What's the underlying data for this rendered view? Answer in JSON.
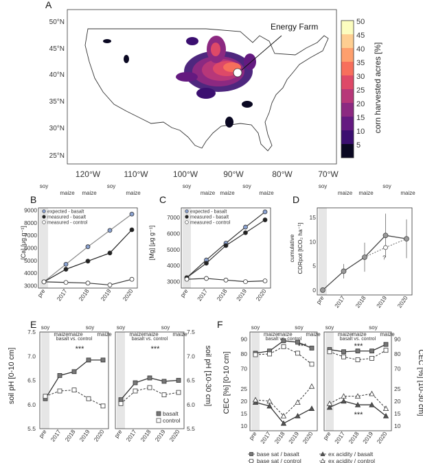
{
  "panels": {
    "A": {
      "label": "A",
      "callout": "Energy Farm",
      "lat_labels": [
        "50°N",
        "45°N",
        "40°N",
        "35°N",
        "30°N",
        "25°N"
      ],
      "lon_labels": [
        "120°W",
        "110°W",
        "100°W",
        "90°W",
        "80°W",
        "70°W"
      ],
      "colorbar": {
        "title": "corn harvested acres [%]",
        "ticks": [
          "50",
          "45",
          "40",
          "35",
          "30",
          "25",
          "20",
          "15",
          "10",
          "5"
        ],
        "colors": [
          "#fcfdbf",
          "#fece91",
          "#fe9f6d",
          "#f76f5c",
          "#de4968",
          "#b73779",
          "#8c2981",
          "#641a80",
          "#3b0f70",
          "#0a0822"
        ]
      }
    },
    "B": {
      "label": "B",
      "ylabel": "[Ca] [μg g⁻¹]",
      "yticks": [
        "9000",
        "8000",
        "7000",
        "6000",
        "5000",
        "4000",
        "3000"
      ],
      "xticks": [
        "pre",
        "2017",
        "2018",
        "2019",
        "2020"
      ],
      "crops": [
        "soy",
        "maize",
        "maize",
        "soy",
        "maize"
      ],
      "legend": [
        "expected - basalt",
        "measured - basalt",
        "measured - control"
      ]
    },
    "C": {
      "label": "C",
      "ylabel": "[Mg] [μg g⁻¹]",
      "yticks": [
        "7000",
        "6000",
        "5000",
        "4000",
        "3000"
      ],
      "xticks": [
        "pre",
        "2017",
        "2018",
        "2019",
        "2020"
      ],
      "crops": [
        "soy",
        "maize",
        "maize",
        "soy",
        "maize"
      ],
      "legend": [
        "expected - basalt",
        "measured - basalt",
        "measured - control"
      ]
    },
    "D": {
      "label": "D",
      "ylabel_1": "cumulative",
      "ylabel_2": "CDRpot [tCO₂ ha⁻¹]",
      "yticks": [
        "15",
        "10",
        "5",
        "0"
      ],
      "xticks": [
        "pre",
        "2017",
        "2018",
        "2019",
        "2020"
      ],
      "crops": [
        "soy",
        "maize",
        "maize",
        "soy",
        "maize"
      ],
      "note": "?"
    },
    "E": {
      "label": "E",
      "ylabel_left": "soil pH [0-10 cm]",
      "ylabel_right": "soil pH [10-30 cm]",
      "yticks": [
        "7.5",
        "7.0",
        "6.5",
        "6.0",
        "5.5"
      ],
      "xticks": [
        "pre",
        "2017",
        "2018",
        "2019",
        "2020"
      ],
      "crops": [
        "soy",
        "maize",
        "maize",
        "soy",
        "maize"
      ],
      "comparison": "basalt vs. control",
      "sig": "***",
      "legend": [
        "basalt",
        "control"
      ]
    },
    "F": {
      "label": "F",
      "ylabel_left": "CEC [%] [0-10 cm]",
      "ylabel_right": "CEC [%] [10-30 cm]",
      "yticks_top": [
        "90",
        "80",
        "70"
      ],
      "yticks_bottom": [
        "25",
        "20",
        "15",
        "10"
      ],
      "xticks": [
        "pre",
        "2017",
        "2018",
        "2019",
        "2020"
      ],
      "crops": [
        "soy",
        "maize",
        "maize",
        "soy",
        "maize"
      ],
      "comparison": "basalt vs. control",
      "sig": "***",
      "legend": [
        "base sat / basalt",
        "base sat / control",
        "ex acidity / basalt",
        "ex acidity / control"
      ]
    }
  },
  "chart_data": [
    {
      "type": "line",
      "panel": "B",
      "categories": [
        "pre",
        "2017",
        "2018",
        "2019",
        "2020"
      ],
      "ylim": [
        2800,
        9200
      ],
      "series": [
        {
          "name": "expected - basalt",
          "values": [
            3300,
            4700,
            6100,
            7400,
            8700
          ]
        },
        {
          "name": "measured - basalt",
          "values": [
            3300,
            4300,
            4950,
            5600,
            7450
          ]
        },
        {
          "name": "measured - control",
          "values": [
            3300,
            3250,
            3200,
            3050,
            3500
          ]
        }
      ]
    },
    {
      "type": "line",
      "panel": "C",
      "categories": [
        "pre",
        "2017",
        "2018",
        "2019",
        "2020"
      ],
      "ylim": [
        2600,
        7600
      ],
      "series": [
        {
          "name": "expected - basalt",
          "values": [
            3250,
            4350,
            5400,
            6400,
            7350
          ]
        },
        {
          "name": "measured - basalt",
          "values": [
            3250,
            4150,
            5250,
            6050,
            6850
          ]
        },
        {
          "name": "measured - control",
          "values": [
            3150,
            3200,
            3100,
            3000,
            3050
          ]
        }
      ]
    },
    {
      "type": "line",
      "panel": "D",
      "categories": [
        "pre",
        "2017",
        "2018",
        "2019",
        "2020"
      ],
      "ylim": [
        -1,
        17
      ],
      "series": [
        {
          "values": [
            0,
            3.9,
            6.8,
            11.3,
            10.6
          ]
        }
      ]
    },
    {
      "type": "line",
      "panel": "E-left",
      "categories": [
        "pre",
        "2017",
        "2018",
        "2019",
        "2020"
      ],
      "ylim": [
        5.5,
        7.5
      ],
      "series": [
        {
          "name": "basalt",
          "values": [
            6.12,
            6.6,
            6.68,
            6.92,
            6.92
          ]
        },
        {
          "name": "control",
          "values": [
            6.17,
            6.28,
            6.3,
            6.12,
            5.97
          ]
        }
      ]
    },
    {
      "type": "line",
      "panel": "E-right",
      "categories": [
        "pre",
        "2017",
        "2018",
        "2019",
        "2020"
      ],
      "ylim": [
        5.5,
        7.5
      ],
      "series": [
        {
          "name": "basalt",
          "values": [
            6.1,
            6.45,
            6.55,
            6.48,
            6.5
          ]
        },
        {
          "name": "control",
          "values": [
            6.02,
            6.28,
            6.35,
            6.2,
            6.25
          ]
        }
      ]
    },
    {
      "type": "line",
      "panel": "F-top-left",
      "categories": [
        "pre",
        "2017",
        "2018",
        "2019",
        "2020"
      ],
      "ylim": [
        65,
        95
      ],
      "series": [
        {
          "name": "base sat / basalt",
          "values": [
            80.5,
            82,
            89,
            88,
            84
          ]
        },
        {
          "name": "base sat / control",
          "values": [
            79.5,
            80,
            85,
            80.5,
            73
          ]
        }
      ]
    },
    {
      "type": "line",
      "panel": "F-top-right",
      "categories": [
        "pre",
        "2017",
        "2018",
        "2019",
        "2020"
      ],
      "ylim": [
        65,
        95
      ],
      "series": [
        {
          "name": "base sat / basalt",
          "values": [
            83,
            81.5,
            82,
            82,
            86.5
          ]
        },
        {
          "name": "base sat / control",
          "values": [
            81.5,
            78,
            76,
            77,
            82.5
          ]
        }
      ]
    },
    {
      "type": "line",
      "panel": "F-bottom-left",
      "categories": [
        "pre",
        "2017",
        "2018",
        "2019",
        "2020"
      ],
      "ylim": [
        8,
        28
      ],
      "series": [
        {
          "name": "ex acidity / basalt",
          "values": [
            19.5,
            18,
            11,
            14,
            17
          ]
        },
        {
          "name": "ex acidity / control",
          "values": [
            20.5,
            20,
            14,
            19.5,
            26
          ]
        }
      ]
    },
    {
      "type": "line",
      "panel": "F-bottom-right",
      "categories": [
        "pre",
        "2017",
        "2018",
        "2019",
        "2020"
      ],
      "ylim": [
        8,
        28
      ],
      "series": [
        {
          "name": "ex acidity / basalt",
          "values": [
            17.5,
            20,
            18.5,
            18.5,
            14
          ]
        },
        {
          "name": "ex acidity / control",
          "values": [
            19,
            22,
            22,
            23,
            17
          ]
        }
      ]
    }
  ]
}
